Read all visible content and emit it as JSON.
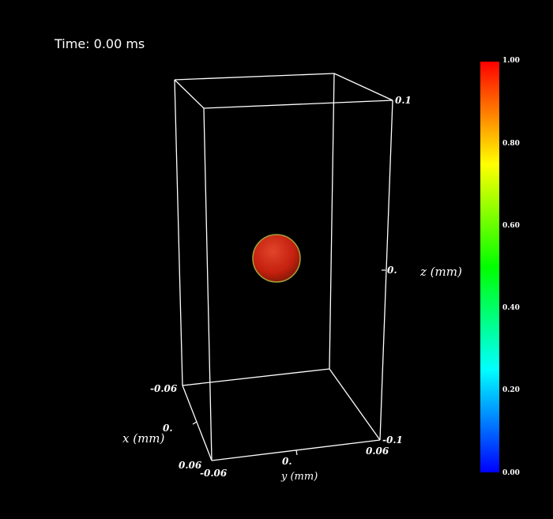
{
  "time_readout": "Time: 0.00 ms",
  "axes": {
    "x": {
      "title": "x (mm)",
      "ticks": [
        "-0.06",
        "0.",
        "0.06"
      ]
    },
    "y": {
      "title": "y (mm)",
      "ticks": [
        "-0.06",
        "0.",
        "0.06"
      ]
    },
    "z": {
      "title": "z (mm)",
      "ticks": [
        "-0.1",
        "0.",
        "0.1"
      ]
    }
  },
  "colorbar": {
    "range": [
      0.0,
      1.0
    ],
    "ticks": [
      "0.00",
      "0.20",
      "0.40",
      "0.60",
      "0.80",
      "1.00"
    ],
    "colors": [
      "#0000ff",
      "#00ffff",
      "#00ff00",
      "#ffff00",
      "#ff0000"
    ]
  },
  "droplet": {
    "color": "#cc2a10",
    "edge_color": "#a5a03a"
  },
  "box_color": "#ffffff"
}
